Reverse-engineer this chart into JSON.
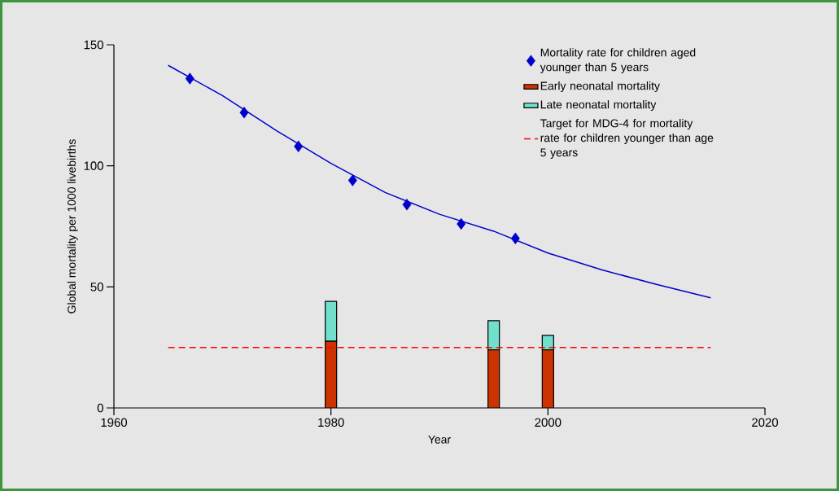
{
  "chart_data": {
    "type": "bar",
    "xlabel": "Year",
    "ylabel": "Global mortality per 1000 livebirths",
    "stacked": true,
    "xlim": [
      1960,
      2020
    ],
    "xticks": [
      1960,
      1980,
      2000,
      2020
    ],
    "ylim": [
      0,
      150
    ],
    "yticks": [
      0,
      50,
      100,
      150
    ],
    "legend": "top right",
    "series": [
      {
        "type": "line",
        "color": "#0000cc",
        "marker": "none",
        "x": [
          1965,
          1970,
          1975,
          1980,
          1985,
          1990,
          1995,
          2000,
          2005,
          2010,
          2015
        ],
        "values": [
          141.5,
          129,
          114.5,
          101,
          89,
          80,
          73,
          64,
          57,
          51,
          45.5
        ]
      },
      {
        "type": "scatter",
        "name": "Mortality rate for children aged younger than 5 years",
        "color": "#0000cc",
        "marker": "diamond",
        "x": [
          1967,
          1972,
          1977,
          1982,
          1987,
          1992,
          1997
        ],
        "values": [
          136,
          122,
          108,
          94,
          84,
          76,
          70
        ]
      },
      {
        "type": "bar",
        "name": "Early neonatal mortality",
        "color": "#cc3300",
        "x": [
          1980,
          1995,
          2000
        ],
        "values": [
          27.5,
          24,
          24
        ]
      },
      {
        "type": "bar",
        "name": "Late neonatal mortality",
        "color": "#70dfcc",
        "x": [
          1980,
          1995,
          2000
        ],
        "values": [
          16.5,
          12,
          6
        ]
      }
    ],
    "ref_lines": [
      {
        "axis": "y",
        "value": 25,
        "label": "Target for MDG-4 for mortality rate for children younger than age 5 years",
        "color": "#ff0000",
        "line_style": "dashed"
      }
    ]
  }
}
